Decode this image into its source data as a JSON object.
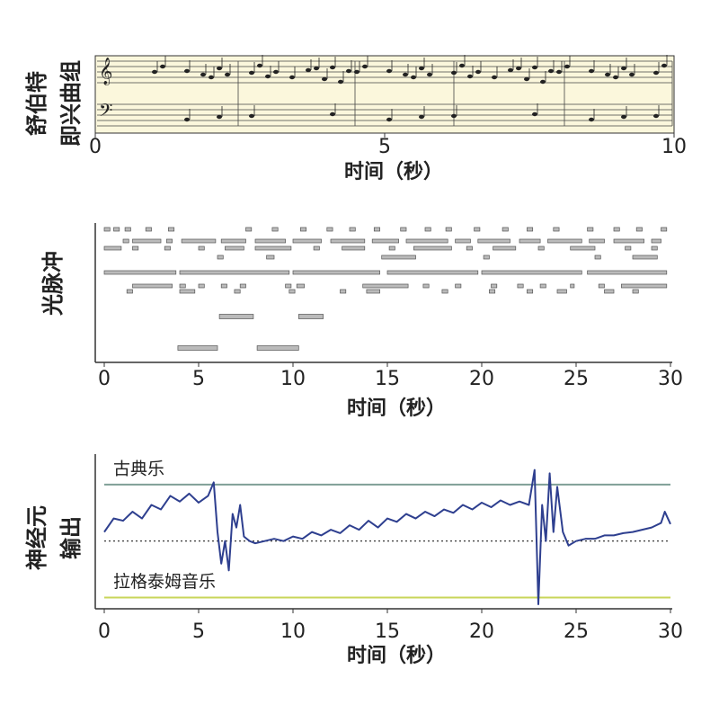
{
  "chart_data": [
    {
      "type": "score",
      "ylabel": [
        "舒伯特",
        "即兴曲组"
      ],
      "xlabel": "时间（秒）",
      "xlim": [
        0,
        10
      ],
      "xticks": [
        0,
        5,
        10
      ]
    },
    {
      "type": "raster",
      "ylabel": "光脉冲",
      "xlabel": "时间（秒）",
      "xlim": [
        0,
        30
      ],
      "xticks": [
        0,
        5,
        10,
        15,
        20,
        25,
        30
      ],
      "rows": [
        [
          [
            0,
            0.3
          ],
          [
            0.5,
            0.8
          ],
          [
            1.1,
            1.4
          ],
          [
            2.2,
            2.5
          ],
          [
            3.4,
            3.7
          ],
          [
            7.5,
            7.8
          ],
          [
            8.9,
            9.2
          ],
          [
            10.4,
            10.7
          ],
          [
            11.8,
            12.1
          ],
          [
            13.0,
            13.3
          ],
          [
            14.3,
            14.6
          ],
          [
            15.7,
            16.0
          ],
          [
            17.0,
            17.3
          ],
          [
            18.1,
            18.4
          ],
          [
            19.6,
            19.9
          ],
          [
            21.1,
            21.4
          ],
          [
            22.4,
            22.7
          ],
          [
            23.8,
            24.1
          ],
          [
            25.6,
            25.9
          ],
          [
            27.0,
            27.3
          ],
          [
            28.2,
            28.5
          ],
          [
            29.5,
            29.8
          ]
        ],
        [
          [
            1.0,
            1.3
          ],
          [
            1.5,
            3.0
          ],
          [
            3.3,
            3.6
          ],
          [
            4.1,
            5.9
          ],
          [
            6.2,
            7.5
          ],
          [
            8.0,
            9.6
          ],
          [
            10.0,
            11.5
          ],
          [
            12.0,
            13.8
          ],
          [
            14.2,
            15.6
          ],
          [
            16.0,
            18.2
          ],
          [
            18.6,
            19.4
          ],
          [
            19.8,
            21.5
          ],
          [
            22.0,
            23.1
          ],
          [
            23.5,
            25.3
          ],
          [
            25.7,
            26.5
          ],
          [
            27.0,
            28.6
          ],
          [
            29.0,
            29.5
          ]
        ],
        [
          [
            0,
            0.9
          ],
          [
            1.5,
            1.8
          ],
          [
            3.2,
            3.5
          ],
          [
            5.0,
            5.3
          ],
          [
            6.4,
            7.4
          ],
          [
            8.0,
            9.9
          ],
          [
            11.1,
            11.4
          ],
          [
            12.6,
            13.8
          ],
          [
            15.1,
            15.4
          ],
          [
            16.4,
            18.4
          ],
          [
            19.2,
            19.5
          ],
          [
            20.6,
            21.8
          ],
          [
            23.0,
            23.3
          ],
          [
            24.7,
            26.0
          ],
          [
            27.6,
            27.9
          ],
          [
            29.0,
            29.3
          ]
        ],
        [
          [
            6.0,
            6.3
          ],
          [
            8.6,
            9.0
          ],
          [
            14.7,
            16.5
          ],
          [
            20.1,
            20.4
          ],
          [
            26.0,
            26.3
          ],
          [
            28.0,
            29.3
          ]
        ],
        [
          [
            0,
            3.8
          ],
          [
            4.0,
            9.8
          ],
          [
            10.0,
            14.6
          ],
          [
            15.0,
            19.8
          ],
          [
            20.0,
            25.3
          ],
          [
            25.6,
            29.8
          ]
        ],
        [
          [
            1.5,
            3.6
          ],
          [
            4.0,
            4.3
          ],
          [
            5.0,
            5.3
          ],
          [
            6.2,
            6.5
          ],
          [
            7.2,
            7.5
          ],
          [
            9.6,
            9.9
          ],
          [
            10.2,
            10.6
          ],
          [
            13.7,
            16.1
          ],
          [
            16.9,
            17.2
          ],
          [
            18.6,
            18.9
          ],
          [
            20.5,
            20.8
          ],
          [
            21.9,
            22.2
          ],
          [
            23.1,
            23.4
          ],
          [
            24.7,
            24.9
          ],
          [
            26.2,
            26.5
          ],
          [
            27.4,
            29.8
          ]
        ],
        [
          [
            1.2,
            1.5
          ],
          [
            4.0,
            4.8
          ],
          [
            6.9,
            7.2
          ],
          [
            9.8,
            10.1
          ],
          [
            12.5,
            12.8
          ],
          [
            13.9,
            14.6
          ],
          [
            17.9,
            18.2
          ],
          [
            20.4,
            20.7
          ],
          [
            22.4,
            22.7
          ],
          [
            24.0,
            24.5
          ],
          [
            26.5,
            27.0
          ],
          [
            28.0,
            28.3
          ]
        ],
        [
          [
            6.1,
            7.9
          ],
          [
            10.3,
            11.6
          ]
        ],
        [
          [
            3.9,
            6.0
          ],
          [
            8.1,
            10.3
          ]
        ]
      ]
    },
    {
      "type": "line",
      "ylabel": [
        "神经元",
        "输出"
      ],
      "xlabel": "时间（秒）",
      "xlim": [
        0,
        30
      ],
      "xticks": [
        0,
        5,
        10,
        15,
        20,
        25,
        30
      ],
      "ylim": [
        -0.1,
        1.27
      ],
      "x": [
        0,
        0.5,
        1,
        1.5,
        2,
        2.5,
        3,
        3.5,
        4,
        4.5,
        5,
        5.5,
        5.8,
        6.0,
        6.2,
        6.4,
        6.6,
        6.8,
        7.0,
        7.2,
        7.4,
        7.7,
        8,
        8.5,
        9,
        9.5,
        10,
        10.5,
        11,
        11.5,
        12,
        12.5,
        13,
        13.5,
        14,
        14.5,
        15,
        15.5,
        16,
        16.5,
        17,
        17.5,
        18,
        18.5,
        19,
        19.5,
        20,
        20.5,
        21,
        21.5,
        22,
        22.5,
        22.8,
        23.0,
        23.2,
        23.4,
        23.6,
        23.8,
        24.0,
        24.3,
        24.6,
        25,
        25.5,
        26,
        26.5,
        27,
        27.5,
        28,
        28.5,
        29,
        29.5,
        29.7,
        30
      ],
      "series": [
        {
          "color": "#2e3f8f",
          "values": [
            0.58,
            0.7,
            0.68,
            0.76,
            0.7,
            0.82,
            0.78,
            0.9,
            0.85,
            0.92,
            0.84,
            0.9,
            1.02,
            0.58,
            0.3,
            0.5,
            0.24,
            0.74,
            0.62,
            0.82,
            0.54,
            0.5,
            0.48,
            0.5,
            0.52,
            0.5,
            0.54,
            0.52,
            0.58,
            0.55,
            0.6,
            0.57,
            0.64,
            0.6,
            0.68,
            0.62,
            0.7,
            0.67,
            0.74,
            0.7,
            0.76,
            0.72,
            0.78,
            0.75,
            0.82,
            0.78,
            0.84,
            0.8,
            0.86,
            0.82,
            0.85,
            0.82,
            1.13,
            -0.06,
            0.82,
            0.5,
            1.1,
            0.58,
            0.98,
            0.58,
            0.46,
            0.5,
            0.52,
            0.52,
            0.55,
            0.55,
            0.57,
            0.58,
            0.6,
            0.62,
            0.66,
            0.76,
            0.65
          ]
        }
      ],
      "reference_lines": [
        {
          "label": "古典乐",
          "value": 1,
          "color": "#7f9f96"
        },
        {
          "label": "拉格泰姆音乐",
          "value": 0,
          "color": "#c8d65a"
        }
      ],
      "threshold": 0.5
    }
  ]
}
